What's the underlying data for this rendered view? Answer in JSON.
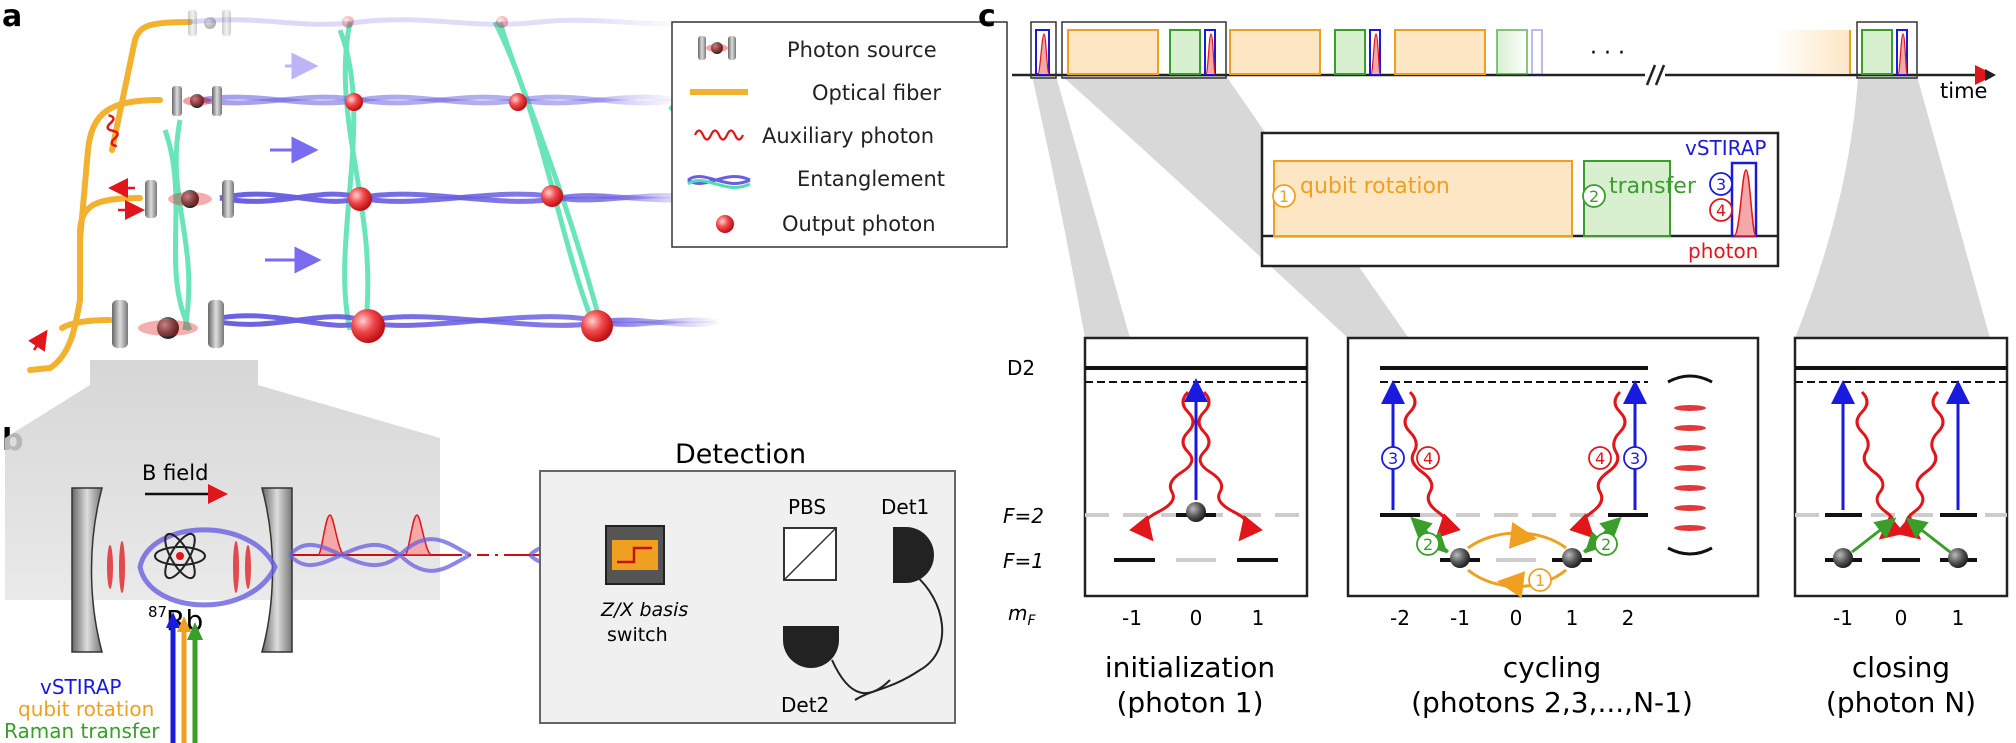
{
  "panels": {
    "a": "a",
    "b": "b",
    "c": "c"
  },
  "legend": {
    "photon_source": "Photon source",
    "optical_fiber": "Optical fiber",
    "auxiliary_photon": "Auxiliary photon",
    "entanglement": "Entanglement",
    "output_photon": "Output photon"
  },
  "panel_b": {
    "b_field": "B field",
    "atom_mass": "87",
    "atom_symbol": "Rb",
    "detection_title": "Detection",
    "pbs": "PBS",
    "det1": "Det1",
    "det2": "Det2",
    "switch_line1": "Z/X basis",
    "switch_line2": "switch",
    "beams": {
      "vstirap": "vSTIRAP",
      "qubit_rotation": "qubit rotation",
      "raman_transfer": "Raman transfer"
    }
  },
  "panel_c": {
    "time_label": "time",
    "ellipsis": "· · ·",
    "zoom": {
      "qubit_rotation": "qubit rotation",
      "transfer": "transfer",
      "vstirap": "vSTIRAP",
      "photon": "photon",
      "step1": "1",
      "step2": "2",
      "step3": "3",
      "step4": "4"
    },
    "levels": {
      "d2": "D2",
      "f2": "F=2",
      "f1": "F=1",
      "mf": "m",
      "mf_sub": "F"
    },
    "init": {
      "ticks": [
        "-1",
        "0",
        "1"
      ],
      "title": "initialization",
      "subtitle": "(photon 1)"
    },
    "cycling": {
      "ticks": [
        "-2",
        "-1",
        "0",
        "1",
        "2"
      ],
      "title": "cycling",
      "subtitle": "(photons 2,3,...,N-1)"
    },
    "closing": {
      "ticks": [
        "-1",
        "0",
        "1"
      ],
      "title": "closing",
      "subtitle": "(photon N)"
    }
  },
  "colors": {
    "fiber": "#f2b230",
    "entangle_blue": "#6a5fe0",
    "entangle_green": "#4fe0b0",
    "photon_red": "#e0161b",
    "vstirap_blue": "#1a1adf",
    "rotation_orange": "#f0a020",
    "transfer_green": "#3a9e2a",
    "zoom_fill": "#d4d4d4"
  }
}
